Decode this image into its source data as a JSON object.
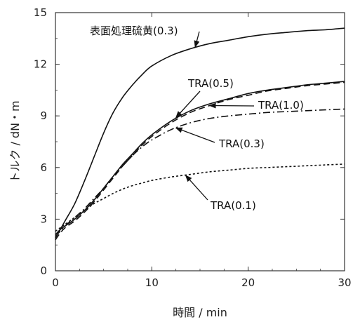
{
  "chart_data": {
    "type": "line",
    "xlabel": "時間 / min",
    "ylabel": "トルク / dN・m",
    "xlim": [
      0,
      30
    ],
    "ylim": [
      0,
      15
    ],
    "x_ticks": [
      "0",
      "10",
      "20",
      "30"
    ],
    "y_ticks": [
      "0",
      "3",
      "6",
      "9",
      "12",
      "15"
    ],
    "grid": false,
    "legend": "none",
    "series": [
      {
        "name": "表面処理硫黄(0.3)",
        "style": "solid",
        "x": [
          0,
          0.5,
          1,
          2,
          3,
          4,
          5,
          6,
          7,
          8,
          9,
          10,
          12,
          14,
          16,
          18,
          20,
          22,
          24,
          26,
          28,
          30
        ],
        "y": [
          1.9,
          2.4,
          2.9,
          3.9,
          5.2,
          6.6,
          8.0,
          9.2,
          10.1,
          10.8,
          11.4,
          11.9,
          12.5,
          12.9,
          13.2,
          13.4,
          13.6,
          13.75,
          13.85,
          13.95,
          14.0,
          14.1
        ]
      },
      {
        "name": "TRA(0.5)",
        "style": "solid",
        "x": [
          0,
          0.5,
          1,
          2,
          3,
          4,
          5,
          6,
          7,
          8,
          9,
          10,
          12,
          14,
          16,
          18,
          20,
          22,
          24,
          26,
          28,
          30
        ],
        "y": [
          2.1,
          2.4,
          2.6,
          3.0,
          3.5,
          4.1,
          4.8,
          5.5,
          6.2,
          6.8,
          7.4,
          7.9,
          8.7,
          9.3,
          9.7,
          10.0,
          10.3,
          10.5,
          10.65,
          10.8,
          10.9,
          11.0
        ]
      },
      {
        "name": "TRA(1.0)",
        "style": "dashed",
        "x": [
          0,
          0.5,
          1,
          2,
          3,
          4,
          5,
          6,
          7,
          8,
          9,
          10,
          12,
          14,
          16,
          18,
          20,
          22,
          24,
          26,
          28,
          30
        ],
        "y": [
          1.8,
          2.2,
          2.5,
          2.9,
          3.4,
          4.0,
          4.7,
          5.4,
          6.1,
          6.7,
          7.3,
          7.8,
          8.6,
          9.2,
          9.6,
          9.95,
          10.2,
          10.45,
          10.6,
          10.75,
          10.85,
          10.95
        ]
      },
      {
        "name": "TRA(0.3)",
        "style": "dashdot",
        "x": [
          0,
          0.5,
          1,
          2,
          3,
          4,
          5,
          6,
          7,
          8,
          9,
          10,
          12,
          14,
          16,
          18,
          20,
          22,
          24,
          26,
          28,
          30
        ],
        "y": [
          2.0,
          2.3,
          2.6,
          3.1,
          3.6,
          4.2,
          4.8,
          5.5,
          6.1,
          6.7,
          7.2,
          7.6,
          8.2,
          8.6,
          8.85,
          9.0,
          9.1,
          9.2,
          9.25,
          9.3,
          9.35,
          9.4
        ]
      },
      {
        "name": "TRA(0.1)",
        "style": "dotted",
        "x": [
          0,
          0.5,
          1,
          2,
          3,
          4,
          5,
          6,
          7,
          8,
          9,
          10,
          12,
          14,
          16,
          18,
          20,
          22,
          24,
          26,
          28,
          30
        ],
        "y": [
          2.3,
          2.5,
          2.7,
          3.1,
          3.5,
          3.9,
          4.2,
          4.5,
          4.75,
          4.95,
          5.1,
          5.25,
          5.45,
          5.6,
          5.75,
          5.85,
          5.95,
          6.0,
          6.05,
          6.1,
          6.15,
          6.2
        ]
      }
    ],
    "annotations": [
      {
        "text": "表面処理硫黄(0.3)",
        "series": "表面処理硫黄(0.3)",
        "point_x": 14.5,
        "point_y": 13.0
      },
      {
        "text": "TRA(0.5)",
        "series": "TRA(0.5)",
        "point_x": 12.5,
        "point_y": 8.9
      },
      {
        "text": "TRA(1.0)",
        "series": "TRA(1.0)",
        "point_x": 16.0,
        "point_y": 9.6
      },
      {
        "text": "TRA(0.3)",
        "series": "TRA(0.3)",
        "point_x": 12.5,
        "point_y": 8.3
      },
      {
        "text": "TRA(0.1)",
        "series": "TRA(0.1)",
        "point_x": 13.5,
        "point_y": 5.55
      }
    ]
  }
}
